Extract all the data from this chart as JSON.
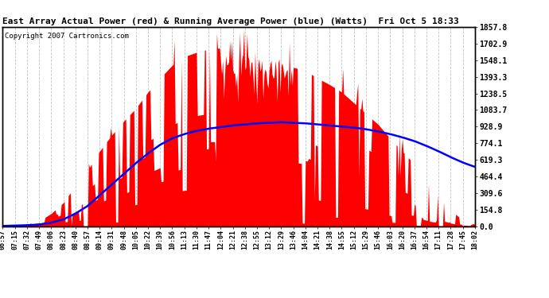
{
  "title": "East Array Actual Power (red) & Running Average Power (blue) (Watts)  Fri Oct 5 18:33",
  "copyright": "Copyright 2007 Cartronics.com",
  "ylabel_right_values": [
    0.0,
    154.8,
    309.6,
    464.4,
    619.3,
    774.1,
    928.9,
    1083.7,
    1238.5,
    1393.3,
    1548.1,
    1702.9,
    1857.8
  ],
  "ymax": 1857.8,
  "ymin": 0.0,
  "background_color": "#ffffff",
  "plot_bg_color": "#ffffff",
  "grid_color": "#bbbbbb",
  "bar_color": "#ff0000",
  "line_color": "#0000ff",
  "x_labels": [
    "06:57",
    "07:15",
    "07:32",
    "07:49",
    "08:06",
    "08:23",
    "08:40",
    "08:57",
    "09:14",
    "09:31",
    "09:48",
    "10:05",
    "10:22",
    "10:39",
    "10:56",
    "11:13",
    "11:30",
    "11:47",
    "12:04",
    "12:21",
    "12:38",
    "12:55",
    "13:12",
    "13:29",
    "13:46",
    "14:04",
    "14:21",
    "14:38",
    "14:55",
    "15:12",
    "15:29",
    "15:46",
    "16:03",
    "16:20",
    "16:37",
    "16:54",
    "17:11",
    "17:28",
    "17:45",
    "18:02"
  ],
  "envelope_power": [
    5,
    10,
    20,
    50,
    120,
    220,
    380,
    520,
    700,
    850,
    980,
    1100,
    1250,
    1380,
    1500,
    1580,
    1620,
    1650,
    1660,
    1650,
    1640,
    1580,
    1600,
    1580,
    1480,
    1450,
    1380,
    1320,
    1250,
    1150,
    1050,
    950,
    820,
    700,
    580,
    420,
    280,
    150,
    60,
    20
  ],
  "running_avg": [
    5,
    8,
    12,
    18,
    35,
    65,
    120,
    190,
    290,
    390,
    490,
    590,
    680,
    760,
    820,
    860,
    890,
    910,
    925,
    940,
    950,
    960,
    965,
    970,
    965,
    960,
    950,
    940,
    930,
    920,
    905,
    885,
    860,
    830,
    795,
    750,
    700,
    645,
    595,
    555
  ],
  "spike_seeds": [
    42,
    123
  ],
  "n_per_interval": 12
}
